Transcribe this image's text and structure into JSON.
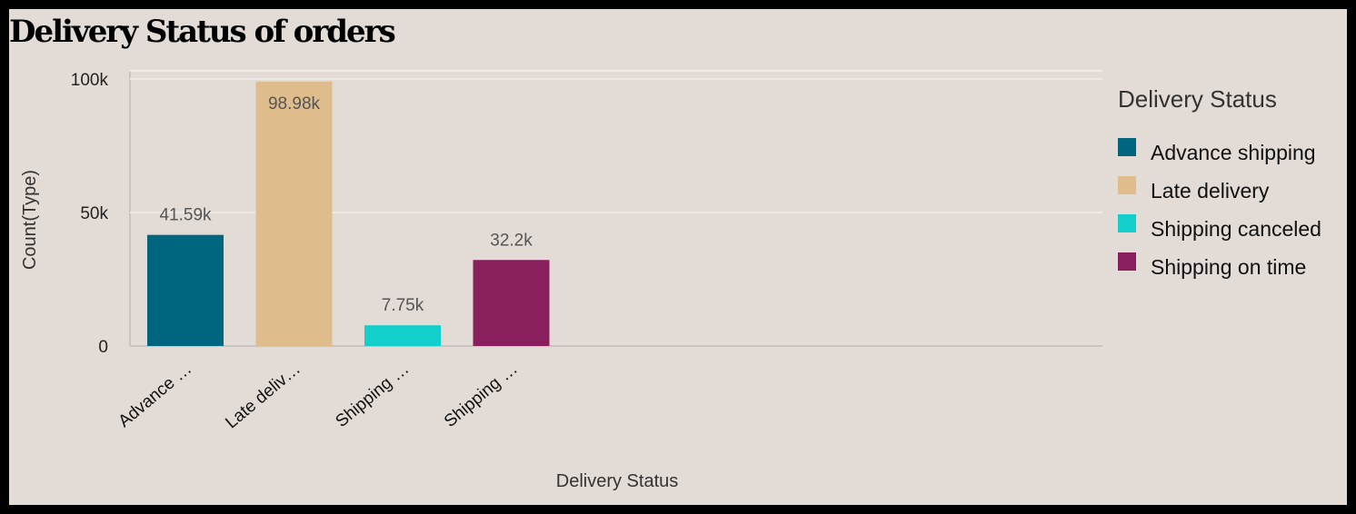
{
  "title": "Delivery Status of orders",
  "chart_data": {
    "type": "bar",
    "categories": [
      "Advance shipping",
      "Late delivery",
      "Shipping canceled",
      "Shipping on time"
    ],
    "category_tick_labels": [
      "Advance …",
      "Late deliv…",
      "Shipping …",
      "Shipping …"
    ],
    "values": [
      41590,
      98980,
      7750,
      32200
    ],
    "value_labels": [
      "41.59k",
      "98.98k",
      "7.75k",
      "32.2k"
    ],
    "colors": [
      "#006680",
      "#dfbc8c",
      "#12cfcb",
      "#8a1f5e"
    ],
    "xlabel": "Delivery Status",
    "ylabel": "Count(Type)",
    "ylim": [
      0,
      103000
    ],
    "yticks": [
      0,
      50000,
      100000
    ],
    "ytick_labels": [
      "0",
      "50k",
      "100k"
    ],
    "grid": true,
    "legend_title": "Delivery Status",
    "legend_position": "right"
  }
}
